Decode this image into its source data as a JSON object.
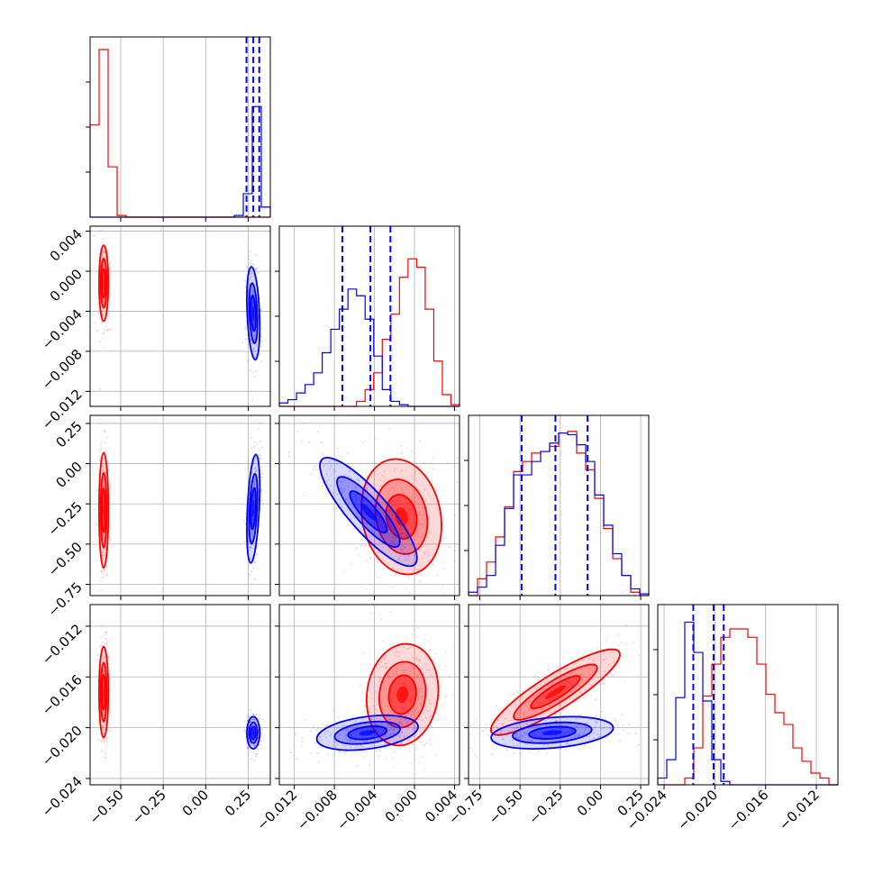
{
  "chart_data": {
    "type": "corner",
    "grid": true,
    "colors": {
      "series_a": "#ff0000",
      "series_b": "#0000ff",
      "quantile_line": "#0000ff",
      "grid": "#b0b0b0"
    },
    "series": [
      {
        "color": "#ff0000"
      },
      {
        "color": "#0000ff"
      }
    ],
    "parameters": [
      {
        "range": [
          -0.68,
          0.38
        ],
        "ticks": [
          -0.5,
          -0.25,
          0.0,
          0.25
        ],
        "tick_labels": [
          "−0.50",
          "−0.25",
          "0.00",
          "0.25"
        ],
        "quantiles_b": [
          0.24,
          0.28,
          0.315
        ],
        "hist_a": [
          0.55,
          1.0,
          0.3,
          0.01,
          0.0,
          0.0,
          0.0,
          0.0,
          0.0,
          0.0,
          0.0,
          0.0,
          0.0,
          0.0,
          0.0,
          0.0,
          0.0,
          0.0,
          0.0,
          0.0
        ],
        "hist_b": [
          0.0,
          0.0,
          0.0,
          0.0,
          0.0,
          0.0,
          0.0,
          0.0,
          0.0,
          0.0,
          0.0,
          0.0,
          0.0,
          0.0,
          0.0,
          0.0,
          0.01,
          0.14,
          0.66,
          0.06
        ]
      },
      {
        "range": [
          -0.0135,
          0.0045
        ],
        "ticks": [
          -0.012,
          -0.008,
          -0.004,
          0.0,
          0.004
        ],
        "tick_labels": [
          "−0.012",
          "−0.008",
          "−0.004",
          "0.000",
          "0.004"
        ],
        "quantiles_b": [
          -0.0072,
          -0.0044,
          -0.0024
        ],
        "hist_a": [
          0.0,
          0.0,
          0.0,
          0.0,
          0.0,
          0.0,
          0.0,
          0.0,
          0.0,
          0.03,
          0.1,
          0.2,
          0.4,
          0.55,
          0.77,
          0.88,
          0.83,
          0.58,
          0.27,
          0.07,
          0.01
        ],
        "hist_b": [
          0.02,
          0.04,
          0.08,
          0.13,
          0.2,
          0.32,
          0.46,
          0.58,
          0.7,
          0.66,
          0.52,
          0.3,
          0.1,
          0.03,
          0.01,
          0.0,
          0.0,
          0.0,
          0.0,
          0.0,
          0.0
        ]
      },
      {
        "range": [
          -0.82,
          0.3
        ],
        "ticks": [
          -0.75,
          -0.5,
          -0.25,
          0.0,
          0.25
        ],
        "tick_labels": [
          "−0.75",
          "−0.50",
          "−0.25",
          "0.00",
          "0.25"
        ],
        "quantiles_b": [
          -0.49,
          -0.28,
          -0.08
        ],
        "hist_a": [
          0.0,
          0.1,
          0.2,
          0.35,
          0.53,
          0.74,
          0.8,
          0.85,
          0.86,
          0.89,
          0.97,
          0.98,
          0.85,
          0.75,
          0.58,
          0.4,
          0.22,
          0.12,
          0.02,
          0.0
        ],
        "hist_b": [
          0.02,
          0.05,
          0.12,
          0.3,
          0.52,
          0.72,
          0.72,
          0.8,
          0.86,
          0.91,
          0.97,
          0.96,
          0.9,
          0.8,
          0.6,
          0.42,
          0.25,
          0.12,
          0.04,
          0.01
        ]
      },
      {
        "range": [
          -0.0245,
          -0.0103
        ],
        "ticks": [
          -0.024,
          -0.02,
          -0.016,
          -0.012
        ],
        "tick_labels": [
          "−0.024",
          "−0.020",
          "−0.016",
          "−0.012"
        ],
        "quantiles_b": [
          -0.0217,
          -0.0201,
          -0.0193
        ],
        "hist_a": [
          0.0,
          0.0,
          0.0,
          0.04,
          0.22,
          0.53,
          0.72,
          0.88,
          0.93,
          0.93,
          0.88,
          0.72,
          0.54,
          0.43,
          0.36,
          0.22,
          0.14,
          0.07,
          0.04,
          0.0
        ],
        "hist_b": [
          0.04,
          0.15,
          0.52,
          0.97,
          0.79,
          0.5,
          0.15,
          0.02,
          0.0,
          0.0,
          0.0,
          0.0,
          0.0,
          0.0,
          0.0,
          0.0,
          0.0,
          0.0,
          0.0,
          0.0
        ]
      }
    ],
    "blobs_a": [
      {
        "i": 0,
        "j": 1,
        "cx": -0.6,
        "cy": -0.0012,
        "sx": 0.013,
        "sy": 0.0018,
        "rho": 0.0
      },
      {
        "i": 0,
        "j": 2,
        "cx": -0.6,
        "cy": -0.29,
        "sx": 0.013,
        "sy": 0.17,
        "rho": 0.0
      },
      {
        "i": 0,
        "j": 3,
        "cx": -0.6,
        "cy": -0.0172,
        "sx": 0.013,
        "sy": 0.0017,
        "rho": 0.0
      },
      {
        "i": 1,
        "j": 2,
        "cx": -0.0013,
        "cy": -0.33,
        "sx": 0.0019,
        "sy": 0.17,
        "rho": -0.15
      },
      {
        "i": 1,
        "j": 3,
        "cx": -0.0012,
        "cy": -0.0174,
        "sx": 0.0017,
        "sy": 0.0019,
        "rho": 0.1
      },
      {
        "i": 2,
        "j": 3,
        "cx": -0.28,
        "cy": -0.0172,
        "sx": 0.19,
        "sy": 0.0016,
        "rho": 0.88
      }
    ],
    "blobs_b": [
      {
        "i": 0,
        "j": 1,
        "cx": 0.28,
        "cy": -0.0042,
        "sx": 0.018,
        "sy": 0.0022,
        "rho": -0.3
      },
      {
        "i": 0,
        "j": 2,
        "cx": 0.28,
        "cy": -0.28,
        "sx": 0.018,
        "sy": 0.16,
        "rho": 0.4
      },
      {
        "i": 0,
        "j": 3,
        "cx": 0.28,
        "cy": -0.0204,
        "sx": 0.018,
        "sy": 0.0006,
        "rho": 0.0
      },
      {
        "i": 1,
        "j": 2,
        "cx": -0.0046,
        "cy": -0.3,
        "sx": 0.0023,
        "sy": 0.16,
        "rho": -0.85
      },
      {
        "i": 1,
        "j": 3,
        "cx": -0.0047,
        "cy": -0.0204,
        "sx": 0.0024,
        "sy": 0.00065,
        "rho": 0.35
      },
      {
        "i": 2,
        "j": 3,
        "cx": -0.3,
        "cy": -0.0204,
        "sx": 0.18,
        "sy": 0.0006,
        "rho": 0.3
      }
    ]
  }
}
